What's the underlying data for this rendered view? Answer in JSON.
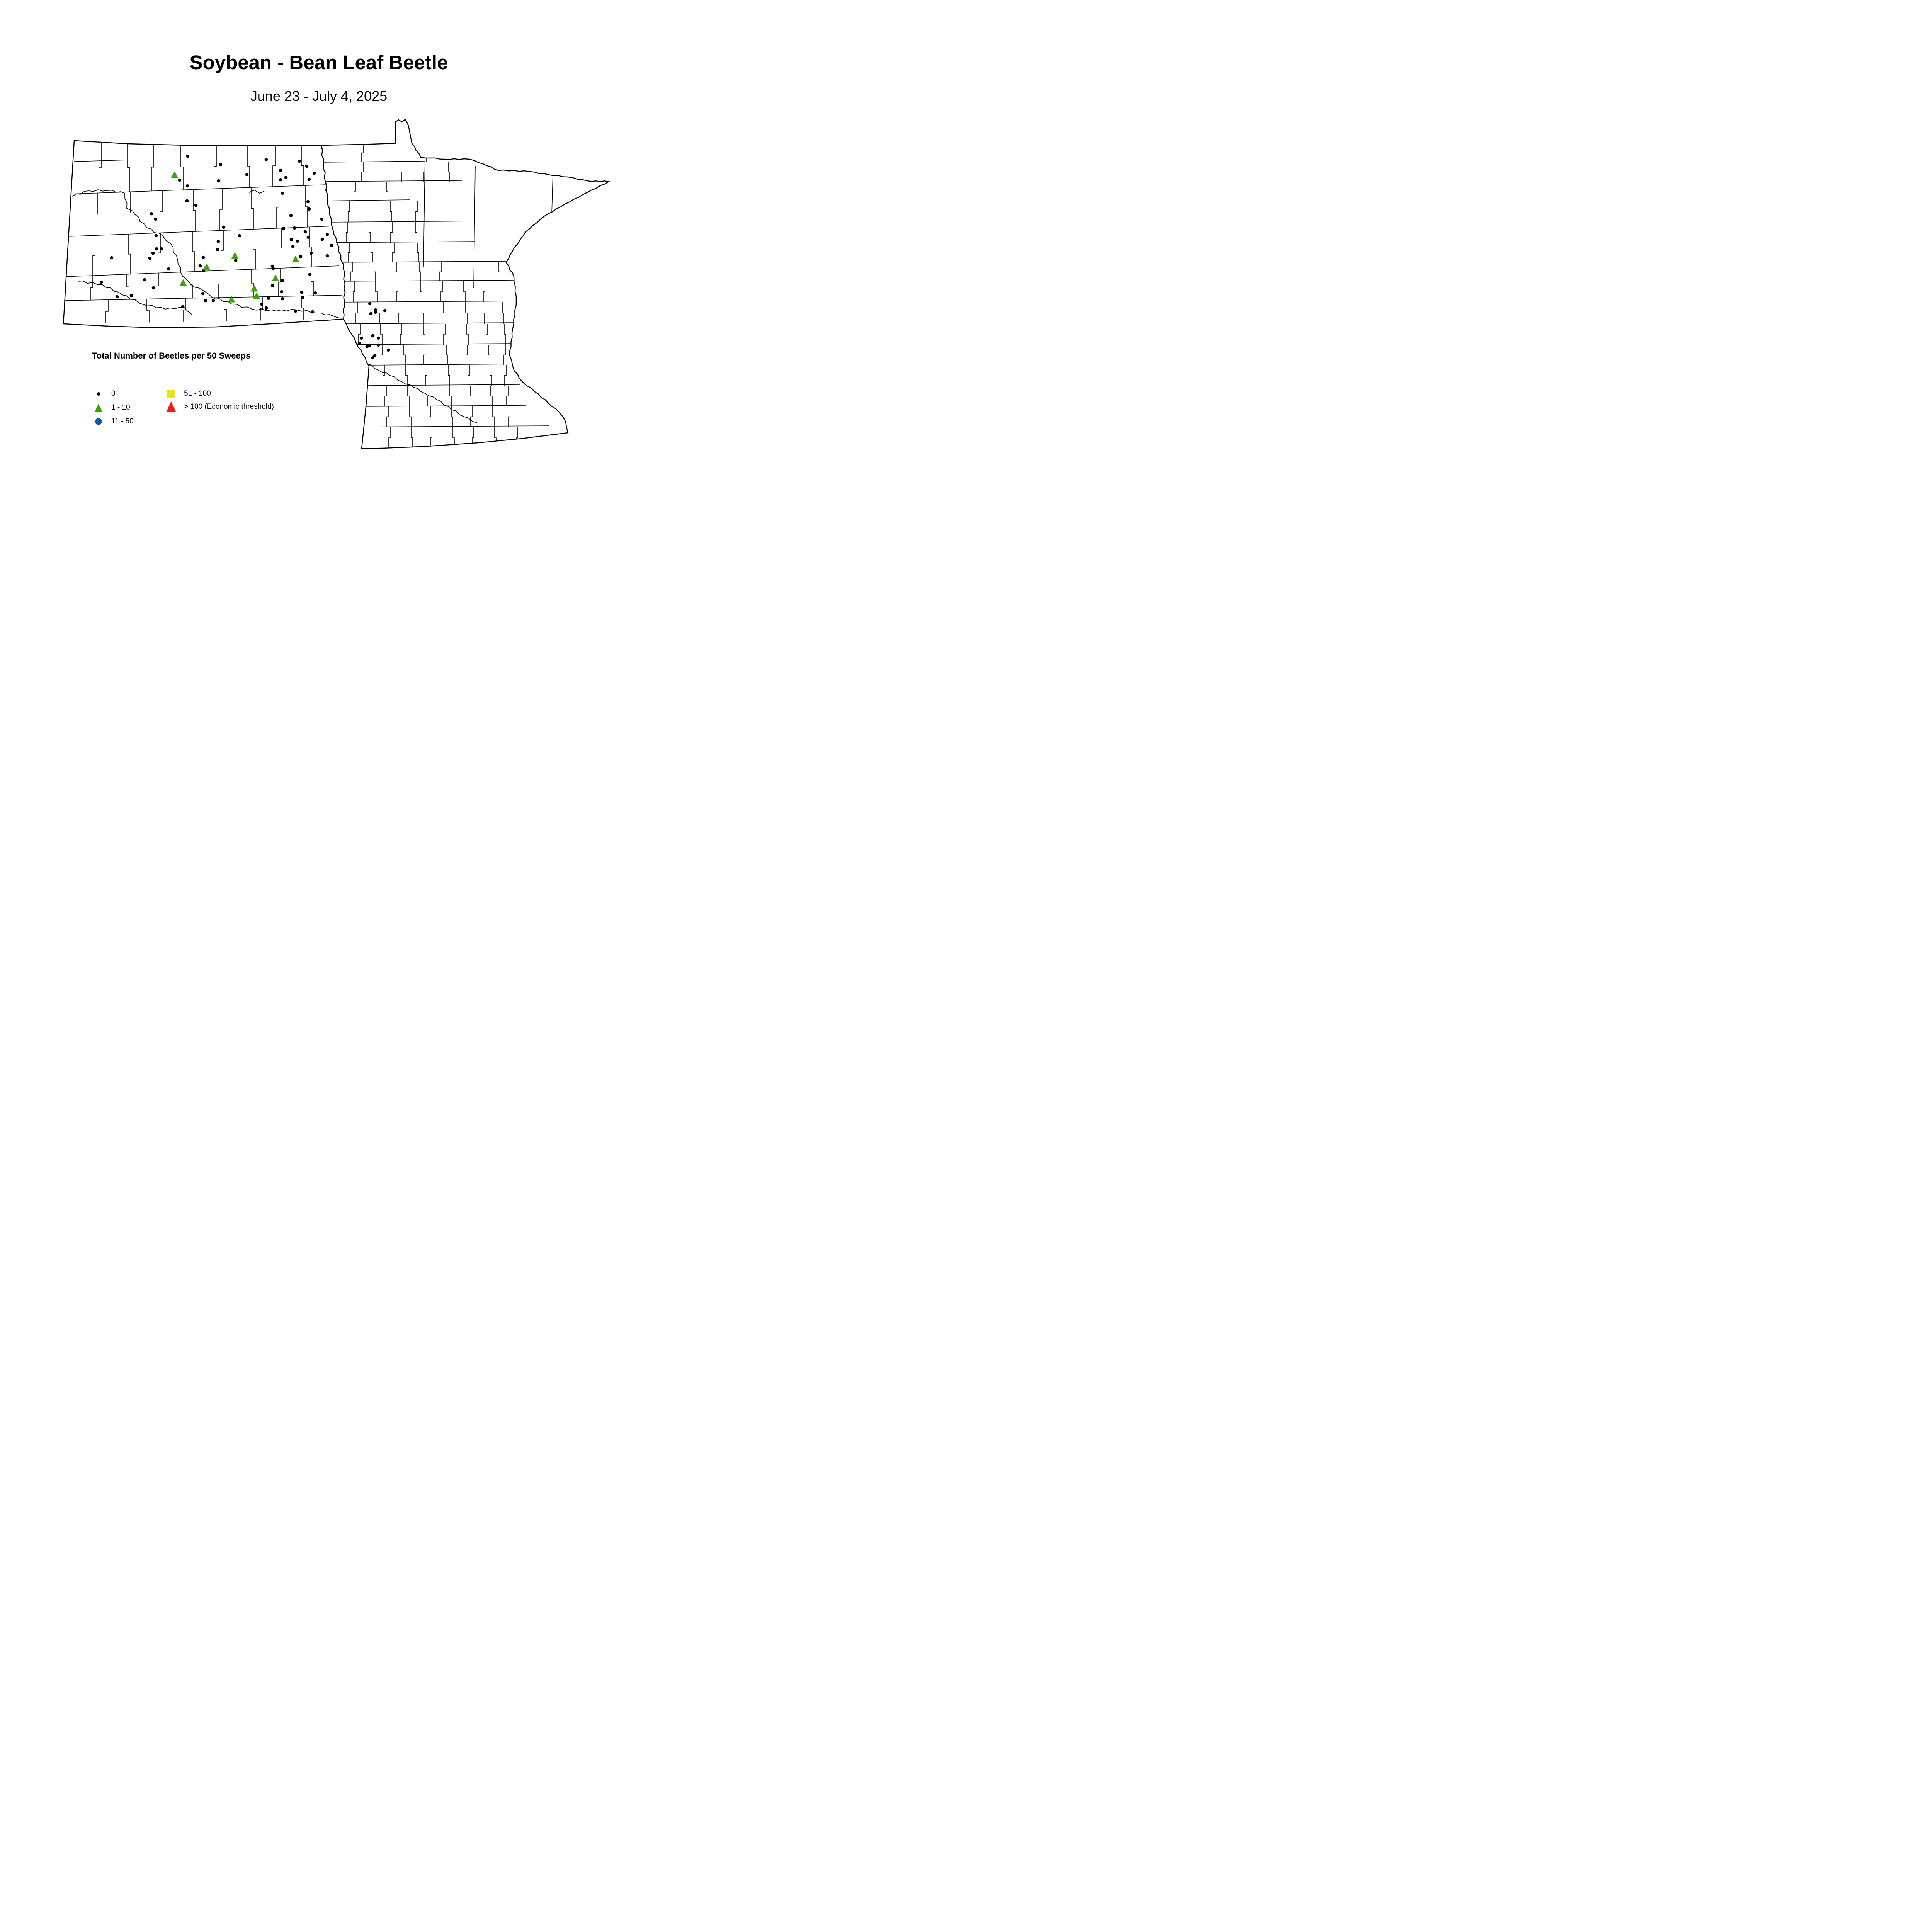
{
  "title": "Soybean - Bean Leaf Beetle",
  "subtitle": "June 23 - July 4, 2025",
  "legend": {
    "heading": "Total Number of Beetles per 50 Sweeps",
    "items": [
      {
        "symbol": "dot-black",
        "label": "0",
        "color": "#000000"
      },
      {
        "symbol": "triangle-green",
        "label": "1 - 10",
        "color": "#38A608"
      },
      {
        "symbol": "circle-blue",
        "label": "11 - 50",
        "color": "#1558A0"
      },
      {
        "symbol": "square-yellow",
        "label": "51 - 100",
        "color": "#E8E410"
      },
      {
        "symbol": "triangle-red",
        "label": "> 100 (Economic threshold)",
        "color": "#FB1315"
      }
    ]
  },
  "map": {
    "states": [
      "North Dakota",
      "Minnesota"
    ],
    "points": {
      "zero": [
        [
          486,
          404
        ],
        [
          689,
          413
        ],
        [
          775,
          417
        ],
        [
          571,
          426
        ],
        [
          794,
          430
        ],
        [
          726,
          441
        ],
        [
          639,
          452
        ],
        [
          813,
          448
        ],
        [
          740,
          459
        ],
        [
          726,
          465
        ],
        [
          800,
          464
        ],
        [
          566,
          468
        ],
        [
          465,
          466
        ],
        [
          485,
          481
        ],
        [
          731,
          500
        ],
        [
          484,
          520
        ],
        [
          507,
          531
        ],
        [
          797,
          522
        ],
        [
          800,
          541
        ],
        [
          392,
          553
        ],
        [
          753,
          558
        ],
        [
          833,
          567
        ],
        [
          403,
          567
        ],
        [
          579,
          588
        ],
        [
          734,
          591
        ],
        [
          762,
          590
        ],
        [
          790,
          600
        ],
        [
          404,
          610
        ],
        [
          620,
          610
        ],
        [
          847,
          607
        ],
        [
          798,
          614
        ],
        [
          834,
          619
        ],
        [
          754,
          620
        ],
        [
          770,
          624
        ],
        [
          565,
          625
        ],
        [
          858,
          635
        ],
        [
          758,
          638
        ],
        [
          563,
          646
        ],
        [
          405,
          644
        ],
        [
          418,
          644
        ],
        [
          396,
          655
        ],
        [
          289,
          667
        ],
        [
          388,
          668
        ],
        [
          526,
          666
        ],
        [
          805,
          655
        ],
        [
          778,
          664
        ],
        [
          847,
          662
        ],
        [
          518,
          688
        ],
        [
          527,
          700
        ],
        [
          436,
          696
        ],
        [
          610,
          674
        ],
        [
          705,
          689
        ],
        [
          707,
          695
        ],
        [
          802,
          710
        ],
        [
          731,
          726
        ],
        [
          705,
          739
        ],
        [
          262,
          730
        ],
        [
          374,
          724
        ],
        [
          397,
          745
        ],
        [
          729,
          755
        ],
        [
          781,
          756
        ],
        [
          816,
          758
        ],
        [
          303,
          768
        ],
        [
          340,
          765
        ],
        [
          525,
          760
        ],
        [
          532,
          778
        ],
        [
          552,
          778
        ],
        [
          695,
          772
        ],
        [
          731,
          773
        ],
        [
          783,
          770
        ],
        [
          677,
          787
        ],
        [
          689,
          797
        ],
        [
          473,
          794
        ],
        [
          765,
          805
        ],
        [
          809,
          807
        ],
        [
          957,
          786
        ],
        [
          972,
          802
        ],
        [
          972,
          808
        ],
        [
          960,
          812
        ],
        [
          996,
          804
        ],
        [
          965,
          869
        ],
        [
          979,
          875
        ],
        [
          935,
          875
        ],
        [
          930,
          889
        ],
        [
          957,
          893
        ],
        [
          950,
          897
        ],
        [
          979,
          893
        ],
        [
          1005,
          906
        ],
        [
          970,
          920
        ],
        [
          965,
          926
        ]
      ],
      "one_to_ten": [
        [
          452,
          453
        ],
        [
          608,
          662
        ],
        [
          765,
          671
        ],
        [
          535,
          691
        ],
        [
          713,
          720
        ],
        [
          658,
          747
        ],
        [
          664,
          766
        ],
        [
          599,
          775
        ],
        [
          474,
          732
        ]
      ],
      "eleven_to_fifty": [],
      "fiftyone_to_hundred": [],
      "over_hundred": []
    }
  }
}
